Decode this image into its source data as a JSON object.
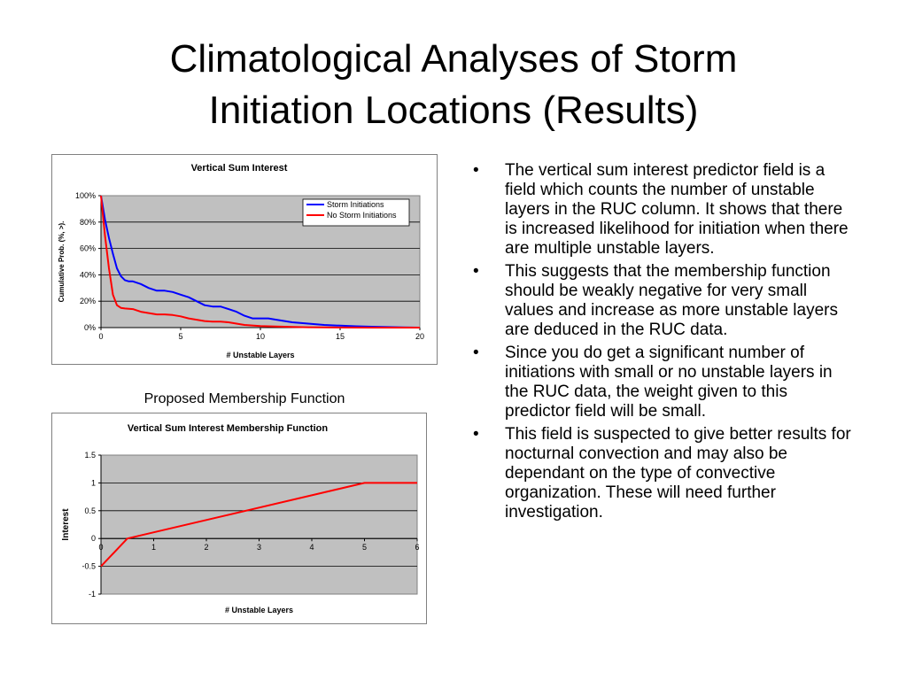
{
  "slide": {
    "title_line1": "Climatological Analyses of Storm",
    "title_line2": "Initiation Locations (Results)",
    "caption": "Proposed Membership Function",
    "bullet_glyph": "•",
    "bullets": [
      "The vertical sum interest predictor field is a field which counts the number of unstable layers in the RUC column.  It shows that there is increased likelihood for initiation when there are multiple unstable layers.",
      "This suggests that the membership function should be weakly negative for very small values and increase as more unstable layers are deduced in the RUC data.",
      "Since you do get a significant number of initiations with small or no unstable layers in the RUC data, the weight given to this predictor field will be small.",
      "This field is suspected to give better results for nocturnal convection and may also be dependant on the type of convective organization.  These will need further investigation."
    ]
  },
  "chart_data": [
    {
      "type": "line",
      "title": "Vertical Sum Interest",
      "xlabel": "# Unstable Layers",
      "ylabel": "Cumulative Prob. (%, >).",
      "xlim": [
        0,
        20
      ],
      "ylim": [
        0,
        100
      ],
      "xticks": [
        "0",
        "5",
        "10",
        "15",
        "20"
      ],
      "yticks": [
        "0%",
        "20%",
        "40%",
        "60%",
        "80%",
        "100%"
      ],
      "grid": true,
      "legend": "top-right",
      "plot_background": "#c0c0c0",
      "series": [
        {
          "name": "Storm Initiations",
          "color": "#0000ff",
          "x": [
            0,
            0.25,
            0.5,
            0.75,
            1,
            1.25,
            1.5,
            1.75,
            2,
            2.5,
            3,
            3.5,
            4,
            4.5,
            5,
            5.5,
            6,
            6.5,
            7,
            7.5,
            8,
            8.5,
            9,
            9.5,
            10,
            10.5,
            11,
            12,
            13,
            14,
            15,
            16,
            17,
            18,
            19,
            20
          ],
          "y": [
            100,
            82,
            68,
            56,
            45,
            39,
            36,
            35,
            35,
            33,
            30,
            28,
            28,
            27,
            25,
            23,
            20,
            17,
            16,
            16,
            14,
            12,
            9,
            7,
            7,
            7,
            6,
            4,
            3,
            2,
            1.5,
            1,
            0.7,
            0.4,
            0.2,
            0
          ]
        },
        {
          "name": "No Storm Initiations",
          "color": "#ff0000",
          "x": [
            0,
            0.25,
            0.5,
            0.75,
            1,
            1.25,
            1.5,
            2,
            2.5,
            3,
            3.5,
            4,
            4.5,
            5,
            5.5,
            6,
            6.5,
            7,
            7.5,
            8,
            8.5,
            9,
            10,
            11,
            12,
            13,
            14,
            15,
            17,
            20
          ],
          "y": [
            100,
            70,
            45,
            25,
            17,
            15,
            14.5,
            14,
            12,
            11,
            10,
            10,
            9.5,
            8.5,
            7,
            6,
            5,
            4.5,
            4.5,
            4,
            3,
            2,
            1.2,
            0.8,
            0.5,
            0.3,
            0.2,
            0.1,
            0,
            0
          ]
        }
      ]
    },
    {
      "type": "line",
      "title": "Vertical Sum Interest Membership Function",
      "xlabel": "# Unstable Layers",
      "ylabel": "Interest",
      "xlim": [
        0,
        6
      ],
      "ylim": [
        -1,
        1.5
      ],
      "xticks": [
        "0",
        "1",
        "2",
        "3",
        "4",
        "5",
        "6"
      ],
      "yticks": [
        "-1",
        "-0.5",
        "0",
        "0.5",
        "1",
        "1.5"
      ],
      "grid": true,
      "legend": "none",
      "plot_background": "#c0c0c0",
      "series": [
        {
          "color": "#ff0000",
          "x": [
            0,
            0.5,
            5,
            6
          ],
          "y": [
            -0.5,
            0,
            1,
            1
          ]
        }
      ]
    }
  ]
}
